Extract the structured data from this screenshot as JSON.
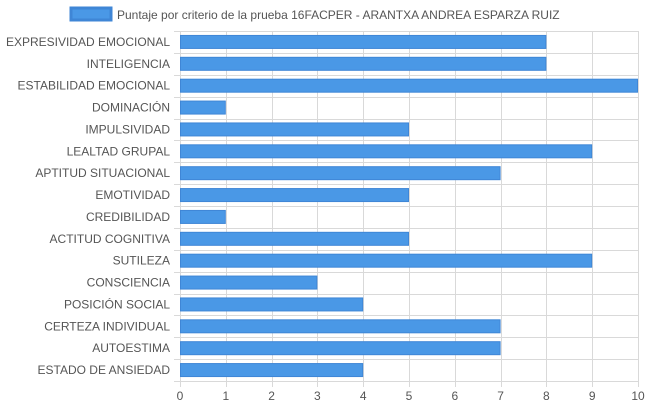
{
  "chart_data": {
    "type": "bar",
    "orientation": "horizontal",
    "series": [
      {
        "name": "Puntaje por criterio de la prueba 16FACPER - ARANTXA ANDREA ESPARZA RUIZ",
        "color": "#4a98e6",
        "border_color": "#3f86d6",
        "values": [
          8,
          8,
          10,
          1,
          5,
          9,
          7,
          5,
          1,
          5,
          9,
          3,
          4,
          7,
          7,
          4
        ]
      }
    ],
    "categories": [
      "EXPRESIVIDAD EMOCIONAL",
      "INTELIGENCIA",
      "ESTABILIDAD EMOCIONAL",
      "DOMINACIÓN",
      "IMPULSIVIDAD",
      "LEALTAD GRUPAL",
      "APTITUD SITUACIONAL",
      "EMOTIVIDAD",
      "CREDIBILIDAD",
      "ACTITUD COGNITIVA",
      "SUTILEZA",
      "CONSCIENCIA",
      "POSICIÓN SOCIAL",
      "CERTEZA INDIVIDUAL",
      "AUTOESTIMA",
      "ESTADO DE ANSIEDAD"
    ],
    "xlim": [
      0,
      10
    ],
    "xticks": [
      "0",
      "1",
      "2",
      "3",
      "4",
      "5",
      "6",
      "7",
      "8",
      "9",
      "10"
    ],
    "legend_position": "top",
    "grid": true,
    "colors": {
      "grid": "#d9d9d9",
      "label": "#555555"
    }
  }
}
